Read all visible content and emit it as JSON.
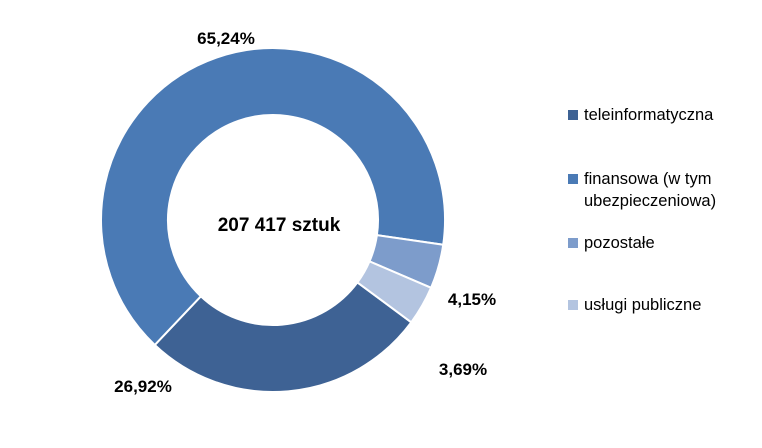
{
  "chart_data": {
    "type": "pie",
    "center_label": "207 417 sztuk",
    "legend_position": "right",
    "categories": [
      "teleinformatyczna",
      "finansowa (w tym ubezpieczeniowa)",
      "pozostałe",
      "usługi publiczne"
    ],
    "values": [
      26.92,
      65.24,
      4.15,
      3.69
    ],
    "data_labels": [
      "26,92%",
      "65,24%",
      "4,15%",
      "3,69%"
    ],
    "colors": [
      "#3e6294",
      "#4a7ab5",
      "#7d9ccb",
      "#b3c4e0"
    ]
  }
}
